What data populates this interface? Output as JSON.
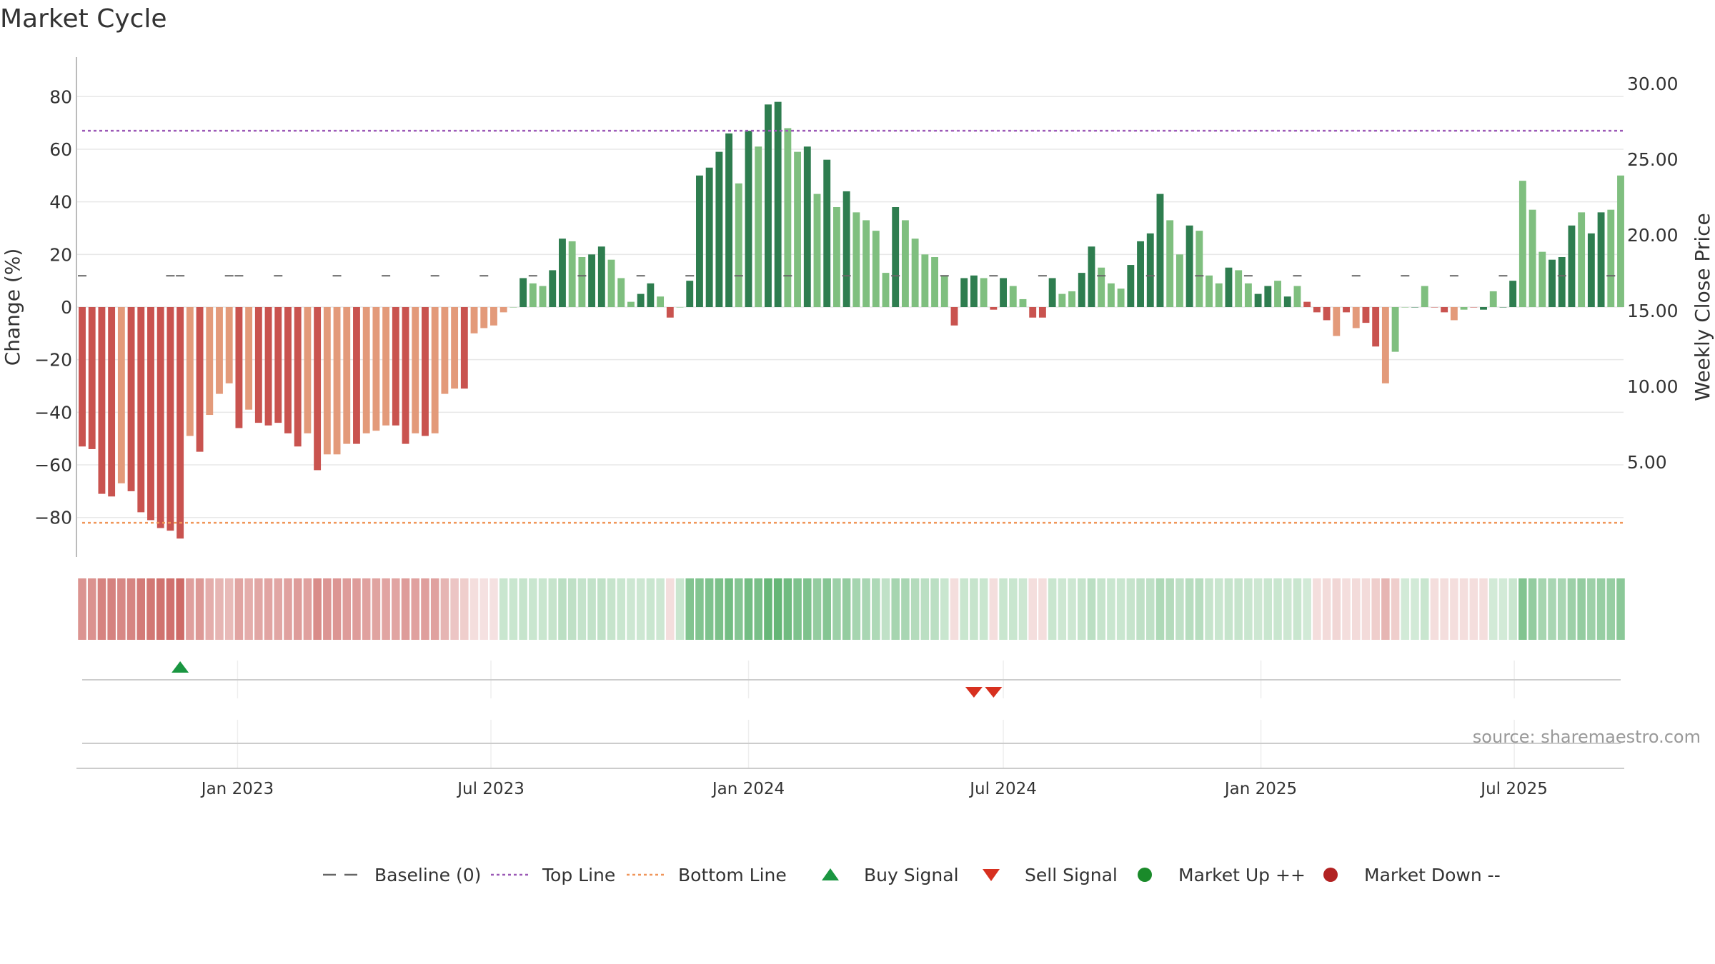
{
  "title": "Market Cycle",
  "source": "source: sharemaestro.com",
  "colors": {
    "strong_up": "#2e7d4f",
    "weak_up": "#7fbf7f",
    "strong_down": "#c9534f",
    "weak_down": "#e39a7a",
    "top_line": "#9b59b6",
    "bottom_line": "#f0965a",
    "buy": "#1a9641",
    "sell": "#d7301f",
    "market_up": "#1a8a2a",
    "market_down": "#b22222",
    "baseline": "#666666"
  },
  "chart_data": {
    "type": "bar",
    "ylabel": "Change (%)",
    "y2label": "Weekly Close Price",
    "ylim": [
      -95,
      95
    ],
    "yticks": [
      "80",
      "60",
      "40",
      "20",
      "0",
      "−20",
      "−40",
      "−60",
      "−80"
    ],
    "ytick_values": [
      80,
      60,
      40,
      20,
      0,
      -20,
      -40,
      -60,
      -80
    ],
    "y2lim": [
      -1.27,
      31.74
    ],
    "y2ticks": [
      "30.00",
      "25.00",
      "20.00",
      "15.00",
      "10.00",
      "5.00"
    ],
    "y2tick_values": [
      30,
      25,
      20,
      15,
      10,
      5
    ],
    "top_line": 67,
    "bottom_line": -82,
    "start_date": "2022-09-12",
    "week_step": 1,
    "values": [
      -53,
      -54,
      -71,
      -72,
      -67,
      -70,
      -78,
      -81,
      -84,
      -85,
      -88,
      -49,
      -55,
      -41,
      -33,
      -29,
      -46,
      -39,
      -44,
      -45,
      -44,
      -48,
      -53,
      -48,
      -62,
      -56,
      -56,
      -52,
      -52,
      -48,
      -47,
      -45,
      -45,
      -52,
      -48,
      -49,
      -48,
      -33,
      -31,
      -31,
      -10,
      -8,
      -7,
      -2,
      0,
      11,
      9,
      8,
      14,
      26,
      25,
      19,
      20,
      23,
      18,
      11,
      2,
      5,
      9,
      4,
      -4,
      0,
      10,
      50,
      53,
      59,
      66,
      47,
      67,
      61,
      77,
      78,
      68,
      59,
      61,
      43,
      56,
      38,
      44,
      36,
      33,
      29,
      13,
      38,
      33,
      26,
      20,
      19,
      12,
      -7,
      11,
      12,
      11,
      -1,
      11,
      8,
      3,
      -4,
      -4,
      11,
      5,
      6,
      13,
      23,
      15,
      9,
      7,
      16,
      25,
      28,
      43,
      33,
      20,
      31,
      29,
      12,
      9,
      15,
      14,
      9,
      5,
      8,
      10,
      4,
      8,
      2,
      -2,
      -5,
      -11,
      -2,
      -8,
      -6,
      -15,
      -29,
      -17,
      0,
      0,
      8,
      0,
      -2,
      -5,
      -1,
      0,
      -1,
      6,
      0,
      10,
      48,
      37,
      21,
      18,
      19,
      31,
      36,
      28,
      36,
      37,
      50
    ],
    "bar_class": [
      "sd",
      "sd",
      "sd",
      "sd",
      "wd",
      "sd",
      "sd",
      "sd",
      "sd",
      "sd",
      "sd",
      "wd",
      "sd",
      "wd",
      "wd",
      "wd",
      "sd",
      "wd",
      "sd",
      "sd",
      "sd",
      "sd",
      "sd",
      "wd",
      "sd",
      "wd",
      "wd",
      "wd",
      "sd",
      "wd",
      "wd",
      "wd",
      "sd",
      "sd",
      "wd",
      "sd",
      "wd",
      "wd",
      "wd",
      "sd",
      "wd",
      "wd",
      "wd",
      "wd",
      "wu",
      "su",
      "wu",
      "wu",
      "su",
      "su",
      "wu",
      "wu",
      "su",
      "su",
      "wu",
      "wu",
      "wu",
      "su",
      "su",
      "wu",
      "sd",
      "wu",
      "su",
      "su",
      "su",
      "su",
      "su",
      "wu",
      "su",
      "wu",
      "su",
      "su",
      "wu",
      "wu",
      "su",
      "wu",
      "su",
      "wu",
      "su",
      "wu",
      "wu",
      "wu",
      "wu",
      "su",
      "wu",
      "wu",
      "wu",
      "wu",
      "wu",
      "sd",
      "su",
      "su",
      "wu",
      "sd",
      "su",
      "wu",
      "wu",
      "sd",
      "sd",
      "su",
      "wu",
      "wu",
      "su",
      "su",
      "wu",
      "wu",
      "wu",
      "su",
      "su",
      "su",
      "su",
      "wu",
      "wu",
      "su",
      "wu",
      "wu",
      "wu",
      "su",
      "wu",
      "wu",
      "su",
      "su",
      "wu",
      "su",
      "wu",
      "sd",
      "sd",
      "sd",
      "wd",
      "sd",
      "wd",
      "sd",
      "sd",
      "wd",
      "wu",
      "wu",
      "su",
      "wu",
      "sd",
      "sd",
      "wd",
      "wu",
      "sd",
      "su",
      "wu",
      "su",
      "su",
      "wu",
      "wu",
      "wu",
      "su",
      "su",
      "su",
      "wu",
      "su",
      "su"
    ],
    "heat": [
      -0.65,
      -0.66,
      -0.75,
      -0.76,
      -0.72,
      -0.74,
      -0.8,
      -0.82,
      -0.85,
      -0.86,
      -0.9,
      -0.58,
      -0.62,
      -0.5,
      -0.45,
      -0.42,
      -0.55,
      -0.5,
      -0.54,
      -0.55,
      -0.54,
      -0.57,
      -0.6,
      -0.57,
      -0.7,
      -0.64,
      -0.64,
      -0.6,
      -0.6,
      -0.57,
      -0.56,
      -0.55,
      -0.55,
      -0.6,
      -0.57,
      -0.58,
      -0.57,
      -0.45,
      -0.35,
      -0.3,
      -0.2,
      -0.18,
      -0.17,
      0.3,
      0.3,
      0.32,
      0.3,
      0.3,
      0.32,
      0.38,
      0.36,
      0.33,
      0.34,
      0.35,
      0.32,
      0.3,
      0.28,
      0.28,
      0.3,
      0.28,
      -0.2,
      0.3,
      0.7,
      0.7,
      0.72,
      0.74,
      0.78,
      0.68,
      0.78,
      0.75,
      0.85,
      0.86,
      0.8,
      0.72,
      0.72,
      0.6,
      0.68,
      0.55,
      0.6,
      0.5,
      0.48,
      0.45,
      0.35,
      0.5,
      0.48,
      0.42,
      0.38,
      0.38,
      0.3,
      -0.2,
      0.3,
      0.32,
      0.3,
      -0.2,
      0.3,
      0.3,
      0.28,
      -0.2,
      -0.2,
      0.3,
      0.28,
      0.28,
      0.32,
      0.38,
      0.32,
      0.3,
      0.3,
      0.32,
      0.36,
      0.36,
      0.45,
      0.42,
      0.36,
      0.4,
      0.4,
      0.32,
      0.3,
      0.32,
      0.32,
      0.3,
      0.28,
      0.3,
      0.3,
      0.28,
      0.3,
      0.25,
      -0.2,
      -0.22,
      -0.25,
      -0.2,
      -0.22,
      -0.22,
      -0.3,
      -0.45,
      -0.3,
      0.25,
      0.25,
      0.3,
      -0.2,
      -0.2,
      -0.2,
      -0.2,
      -0.2,
      -0.2,
      0.25,
      0.25,
      0.3,
      0.7,
      0.6,
      0.5,
      0.48,
      0.48,
      0.55,
      0.6,
      0.55,
      0.58,
      0.58,
      0.65
    ],
    "buy_signal_indices": [
      10
    ],
    "sell_signal_indices": [
      91,
      93
    ],
    "price_markers": [
      0,
      9,
      10,
      15,
      16,
      20,
      26,
      31,
      36,
      41,
      46,
      51,
      57,
      62,
      67,
      72,
      78,
      83,
      88,
      93,
      98,
      104,
      109,
      114,
      119,
      124,
      130,
      135,
      140,
      145,
      151,
      156
    ],
    "price_marker_value": 17.3,
    "x_ticks": [
      {
        "label": "Jan 2023",
        "date": "2023-01-01"
      },
      {
        "label": "Jul 2023",
        "date": "2023-07-01"
      },
      {
        "label": "Jan 2024",
        "date": "2024-01-01"
      },
      {
        "label": "Jul 2024",
        "date": "2024-07-01"
      },
      {
        "label": "Jan 2025",
        "date": "2025-01-01"
      },
      {
        "label": "Jul 2025",
        "date": "2025-07-01"
      }
    ],
    "legend": [
      {
        "label": "Baseline (0)",
        "kind": "dash-long",
        "color": "#666666"
      },
      {
        "label": "Top Line",
        "kind": "dot-line",
        "color": "#9b59b6"
      },
      {
        "label": "Bottom Line",
        "kind": "dot-line",
        "color": "#f0965a"
      },
      {
        "label": "Buy Signal",
        "kind": "tri-up",
        "color": "#1a9641"
      },
      {
        "label": "Sell Signal",
        "kind": "tri-down",
        "color": "#d7301f"
      },
      {
        "label": "Market Up ++",
        "kind": "circle",
        "color": "#1a8a2a"
      },
      {
        "label": "Market Down --",
        "kind": "circle",
        "color": "#b22222"
      }
    ]
  }
}
